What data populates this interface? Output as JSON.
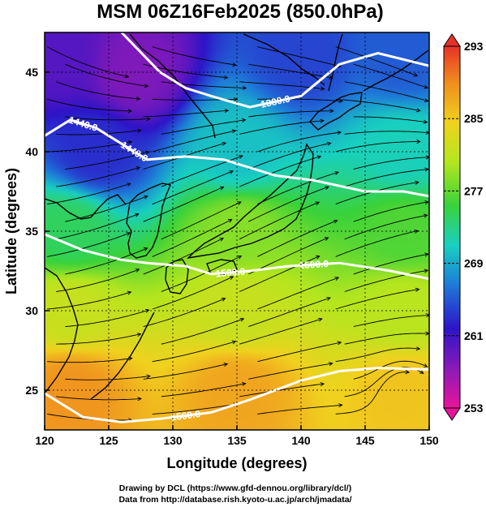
{
  "title": "MSM 06Z16Feb2025 (850.0hPa)",
  "xlabel": "Longitude (degrees)",
  "ylabel": "Latitude  (degrees)",
  "x_ticks": [
    "120",
    "125",
    "130",
    "135",
    "140",
    "145",
    "150"
  ],
  "y_ticks": [
    "45",
    "40",
    "35",
    "30",
    "25"
  ],
  "colorbar_ticks": [
    "293",
    "285",
    "277",
    "269",
    "261",
    "253"
  ],
  "contour_labels": [
    "1380.0",
    "1440.0",
    "1440.0",
    "1500.0",
    "1500.0",
    "1560.0"
  ],
  "credits": {
    "line1": "Drawing by DCL (https://www.gfd-dennou.org/library/dcl/)",
    "line2": "Data from http://database.rish.kyoto-u.ac.jp/arch/jmadata/"
  },
  "chart_data": {
    "type": "heatmap",
    "title": "MSM 06Z16Feb2025 (850.0hPa)",
    "xlabel": "Longitude (degrees)",
    "ylabel": "Latitude  (degrees)",
    "xlim": [
      120,
      150
    ],
    "ylim": [
      22.5,
      47.5
    ],
    "colorbar": {
      "min": 253,
      "max": 293,
      "ticks": [
        293,
        285,
        277,
        269,
        261,
        253
      ],
      "colors": [
        "#e8149a",
        "#8a1ab8",
        "#2d14c8",
        "#1e7ad8",
        "#18d0c0",
        "#3ad23a",
        "#b4e61e",
        "#f0d21e",
        "#f08c1e",
        "#e63228"
      ]
    },
    "temperature_field": {
      "description_points": [
        {
          "lon": 121,
          "lat": 46,
          "T": 260
        },
        {
          "lon": 127,
          "lat": 45,
          "T": 258
        },
        {
          "lon": 140,
          "lat": 46,
          "T": 264
        },
        {
          "lon": 148,
          "lat": 46,
          "T": 265
        },
        {
          "lon": 124,
          "lat": 40,
          "T": 263
        },
        {
          "lon": 135,
          "lat": 40,
          "T": 270
        },
        {
          "lon": 148,
          "lat": 40,
          "T": 271
        },
        {
          "lon": 122,
          "lat": 35,
          "T": 274
        },
        {
          "lon": 135,
          "lat": 35,
          "T": 278
        },
        {
          "lon": 148,
          "lat": 35,
          "T": 276
        },
        {
          "lon": 122,
          "lat": 30,
          "T": 281
        },
        {
          "lon": 135,
          "lat": 30,
          "T": 281
        },
        {
          "lon": 148,
          "lat": 30,
          "T": 280
        },
        {
          "lon": 122,
          "lat": 25,
          "T": 288
        },
        {
          "lon": 135,
          "lat": 25,
          "T": 287
        },
        {
          "lon": 148,
          "lat": 25,
          "T": 285
        }
      ]
    },
    "height_contours": [
      {
        "label": "1380.0",
        "points": [
          [
            126,
            47.5
          ],
          [
            129,
            45
          ],
          [
            131,
            44
          ],
          [
            133,
            43.5
          ],
          [
            136,
            42.8
          ],
          [
            140,
            43.5
          ],
          [
            143,
            45.5
          ],
          [
            146,
            46.2
          ],
          [
            150,
            45.4
          ]
        ]
      },
      {
        "label": "1440.0",
        "points": [
          [
            120,
            41
          ],
          [
            122,
            42
          ],
          [
            124,
            41.5
          ],
          [
            126,
            40.5
          ],
          [
            128,
            39.5
          ],
          [
            131,
            39.7
          ],
          [
            134,
            39.5
          ],
          [
            138,
            38.5
          ],
          [
            141,
            38.2
          ],
          [
            145,
            37.5
          ],
          [
            148,
            37.5
          ],
          [
            150,
            37.2
          ]
        ]
      },
      {
        "label": "1500.0",
        "points": [
          [
            120,
            34.8
          ],
          [
            123,
            33.8
          ],
          [
            126,
            33.2
          ],
          [
            128,
            33
          ],
          [
            131,
            32.8
          ],
          [
            133,
            32.3
          ],
          [
            136,
            32.5
          ],
          [
            139,
            32.8
          ],
          [
            143,
            33
          ],
          [
            147,
            32.5
          ],
          [
            150,
            32
          ]
        ]
      },
      {
        "label": "1560.0",
        "points": [
          [
            120,
            24.8
          ],
          [
            123,
            23.3
          ],
          [
            126,
            23
          ],
          [
            129,
            23.2
          ],
          [
            133,
            23.6
          ],
          [
            136,
            24.4
          ],
          [
            140,
            25.6
          ],
          [
            143,
            26.2
          ],
          [
            146,
            26.4
          ],
          [
            150,
            26.3
          ]
        ]
      }
    ],
    "wind": "streamlines, mostly westerly flow; anticyclonic circulation near 148E 24N"
  }
}
